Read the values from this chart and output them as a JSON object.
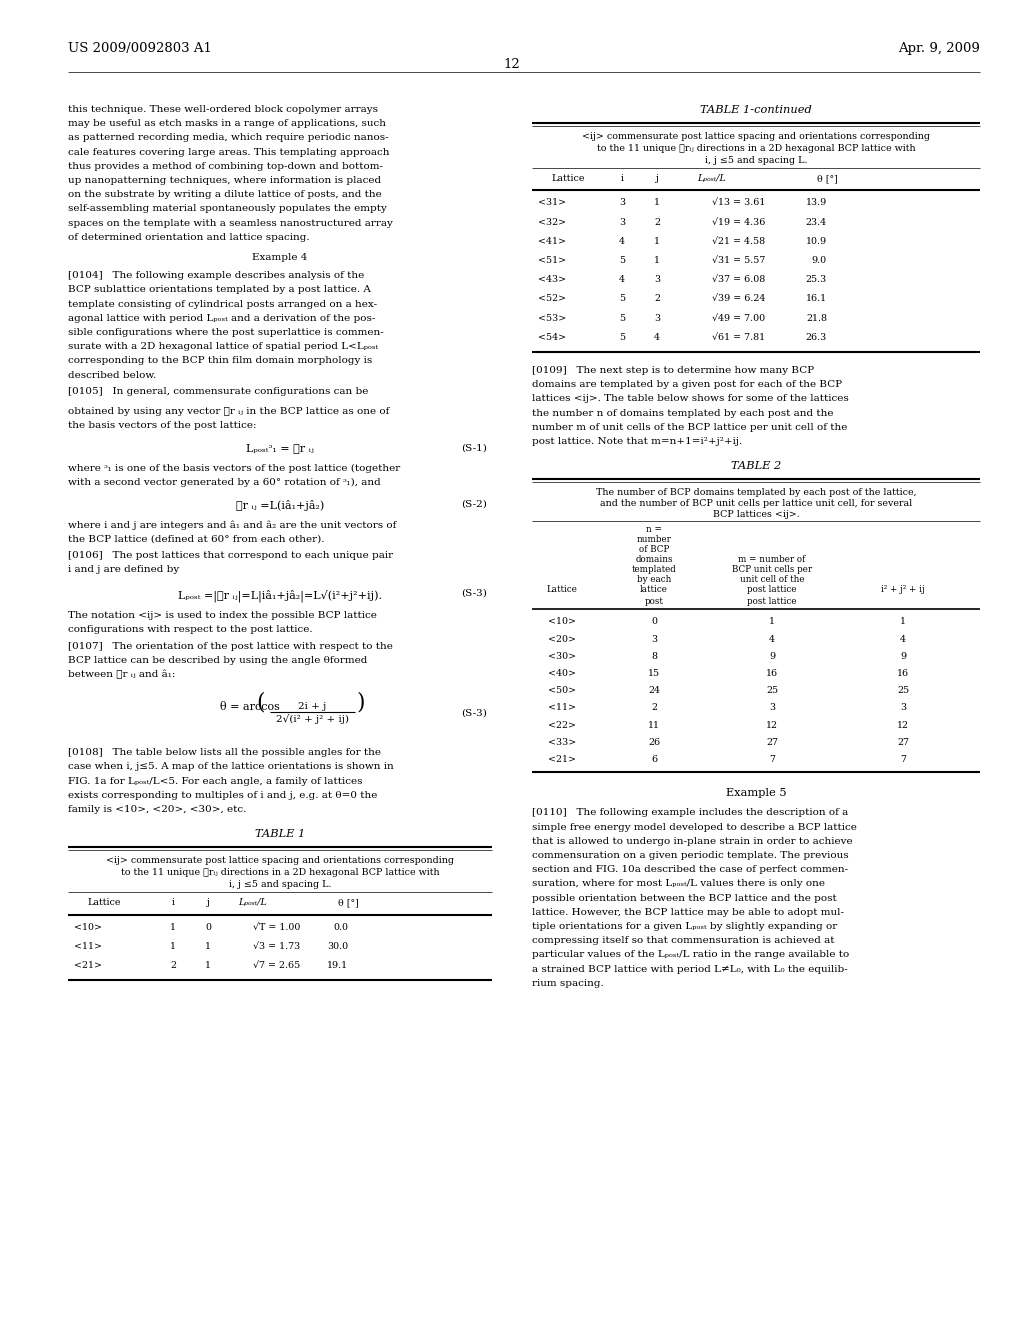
{
  "page_num": "12",
  "patent_num": "US 2009/0092803 A1",
  "patent_date": "Apr. 9, 2009",
  "left_col_para1": [
    "this technique. These well-ordered block copolymer arrays",
    "may be useful as etch masks in a range of applications, such",
    "as patterned recording media, which require periodic nanos-",
    "cale features covering large areas. This templating approach",
    "thus provides a method of combining top-down and bottom-",
    "up nanopatterning techniques, where information is placed",
    "on the substrate by writing a dilute lattice of posts, and the",
    "self-assembling material spontaneously populates the empty",
    "spaces on the template with a seamless nanostructured array",
    "of determined orientation and lattice spacing."
  ],
  "left_col_para2_bold": "[0104]",
  "left_col_para2": "   The following example describes analysis of the BCP sublattice orientations templated by a post lattice. A template consisting of cylindrical posts arranged on a hex-agonal lattice with period L_post and a derivation of the pos-sible configurations where the post superlattice is commen-surate with a 2D hexagonal lattice of spatial period L<L_post corresponding to the BCP thin film domain morphology is described below.",
  "left_col_para2_lines": [
    "[0104]   The following example describes analysis of the",
    "BCP sublattice orientations templated by a post lattice. A",
    "template consisting of cylindrical posts arranged on a hex-",
    "agonal lattice with period Lₚₒₛₜ and a derivation of the pos-",
    "sible configurations where the post superlattice is commen-",
    "surate with a 2D hexagonal lattice of spatial period L<Lₚₒₛₜ",
    "corresponding to the BCP thin film domain morphology is",
    "described below."
  ],
  "left_col_para3_lines": [
    "[0105]   In general, commensurate configurations can be"
  ],
  "left_col_para3b_lines": [
    "obtained by using any vector ⃗r ᵢⱼ in the BCP lattice as one of",
    "the basis vectors of the post lattice:"
  ],
  "eq_s1": "Lₚₒₛₜᵓ₁ = ⃗r ᵢⱼ",
  "eq_s1_label": "(S-1)",
  "left_col_para4_lines": [
    "where ᵓ₁ is one of the basis vectors of the post lattice (together",
    "with a second vector generated by a 60° rotation of ᵓ₁), and"
  ],
  "eq_s2": "⃗r ᵢⱼ =L(iâ₁+jâ₂)",
  "eq_s2_label": "(S-2)",
  "left_col_para5_lines": [
    "where i and j are integers and â₁ and â₂ are the unit vectors of",
    "the BCP lattice (defined at 60° from each other)."
  ],
  "left_col_para6_lines": [
    "[0106]   The post lattices that correspond to each unique pair",
    "i and j are defined by"
  ],
  "eq_s3": "Lₚₒₛₜ =|⃗r ᵢⱼ|=L|iâ₁+jâ₂|=L√(i²+j²+ij).",
  "eq_s3_label": "(S-3)",
  "left_col_para7_lines": [
    "The notation <ij> is used to index the possible BCP lattice",
    "configurations with respect to the post lattice."
  ],
  "left_col_para8_lines": [
    "[0107]   The orientation of the post lattice with respect to the",
    "BCP lattice can be described by using the angle θformed",
    "between ⃗r ᵢⱼ and â₁:"
  ],
  "eq_s4_label": "(S-3)",
  "left_col_para9_lines": [
    "[0108]   The table below lists all the possible angles for the",
    "case when i, j≤5. A map of the lattice orientations is shown in",
    "FIG. 1a for Lₚₒₛₜ/L<5. For each angle, a family of lattices",
    "exists corresponding to multiples of i and j, e.g. at θ=0 the",
    "family is <10>, <20>, <30>, etc."
  ],
  "table1_title": "TABLE 1",
  "table1_subtitle_lines": [
    "<ij> commensurate post lattice spacing and orientations corresponding",
    "to the 11 unique ⃗rᵢⱼ directions in a 2D hexagonal BCP lattice with",
    "i, j ≤5 and spacing L."
  ],
  "table1_headers": [
    "Lattice",
    "i",
    "j",
    "Lₚₒₛₜ/L",
    "θ [°]"
  ],
  "table1_rows": [
    [
      "<10>",
      "1",
      "0",
      "√T = 1.00",
      "0.0"
    ],
    [
      "<11>",
      "1",
      "1",
      "√3 = 1.73",
      "30.0"
    ],
    [
      "<21>",
      "2",
      "1",
      "√7 = 2.65",
      "19.1"
    ]
  ],
  "table1cont_title": "TABLE 1-continued",
  "table1cont_subtitle_lines": [
    "<ij> commensurate post lattice spacing and orientations corresponding",
    "to the 11 unique ⃗rᵢⱼ directions in a 2D hexagonal BCP lattice with",
    "i, j ≤5 and spacing L."
  ],
  "table1cont_headers": [
    "Lattice",
    "i",
    "j",
    "Lₚₒₛₜ/L",
    "θ [°]"
  ],
  "table1cont_rows": [
    [
      "<31>",
      "3",
      "1",
      "√13 = 3.61",
      "13.9"
    ],
    [
      "<32>",
      "3",
      "2",
      "√19 = 4.36",
      "23.4"
    ],
    [
      "<41>",
      "4",
      "1",
      "√21 = 4.58",
      "10.9"
    ],
    [
      "<51>",
      "5",
      "1",
      "√31 = 5.57",
      "9.0"
    ],
    [
      "<43>",
      "4",
      "3",
      "√37 = 6.08",
      "25.3"
    ],
    [
      "<52>",
      "5",
      "2",
      "√39 = 6.24",
      "16.1"
    ],
    [
      "<53>",
      "5",
      "3",
      "√49 = 7.00",
      "21.8"
    ],
    [
      "<54>",
      "5",
      "4",
      "√61 = 7.81",
      "26.3"
    ]
  ],
  "para_0109_lines": [
    "[0109]   The next step is to determine how many BCP",
    "domains are templated by a given post for each of the BCP",
    "lattices <ij>. The table below shows for some of the lattices",
    "the number n of domains templated by each post and the",
    "number m of unit cells of the BCP lattice per unit cell of the",
    "post lattice. Note that m=n+1=i²+j²+ij."
  ],
  "table2_title": "TABLE 2",
  "table2_subtitle_lines": [
    "The number of BCP domains templated by each post of the lattice,",
    "and the number of BCP unit cells per lattice unit cell, for several",
    "BCP lattices <ij>."
  ],
  "table2_col1_lines": [
    "n =",
    "number",
    "of BCP",
    "domains",
    "templated",
    "by each",
    "lattice"
  ],
  "table2_col2_lines": [
    "m = number of",
    "BCP unit cells per",
    "unit cell of the",
    "post lattice"
  ],
  "table2_col3": "i² + j² + ij",
  "table2_subheaders": [
    "Lattice",
    "post",
    "post lattice",
    "i²+j²+ij"
  ],
  "table2_rows": [
    [
      "<10>",
      "0",
      "1",
      "1"
    ],
    [
      "<20>",
      "3",
      "4",
      "4"
    ],
    [
      "<30>",
      "8",
      "9",
      "9"
    ],
    [
      "<40>",
      "15",
      "16",
      "16"
    ],
    [
      "<50>",
      "24",
      "25",
      "25"
    ],
    [
      "<11>",
      "2",
      "3",
      "3"
    ],
    [
      "<22>",
      "11",
      "12",
      "12"
    ],
    [
      "<33>",
      "26",
      "27",
      "27"
    ],
    [
      "<21>",
      "6",
      "7",
      "7"
    ]
  ],
  "example5_lines": [
    "[0110]   The following example includes the description of a",
    "simple free energy model developed to describe a BCP lattice",
    "that is allowed to undergo in-plane strain in order to achieve",
    "commensuration on a given periodic template. The previous",
    "section and FIG. 10a described the case of perfect commen-",
    "suration, where for most Lₚₒₛₜ/L values there is only one",
    "possible orientation between the BCP lattice and the post",
    "lattice. However, the BCP lattice may be able to adopt mul-",
    "tiple orientations for a given Lₚₒₛₜ by slightly expanding or",
    "compressing itself so that commensuration is achieved at",
    "particular values of the Lₚₒₛₜ/L ratio in the range available to",
    "a strained BCP lattice with period L≠L₀, with L₀ the equilib-",
    "rium spacing."
  ]
}
